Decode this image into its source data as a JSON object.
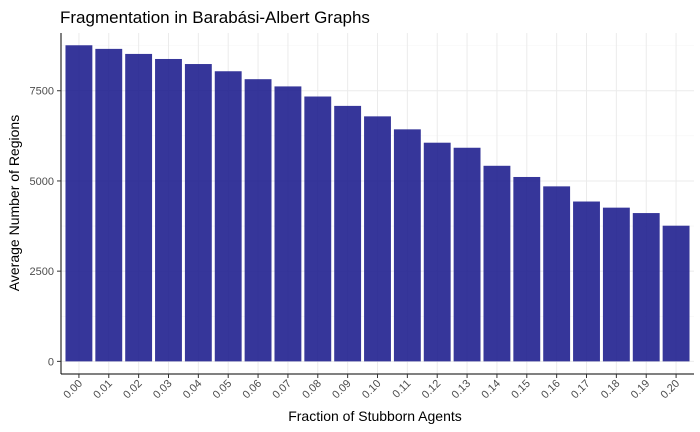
{
  "chart_data": {
    "type": "bar",
    "title": "Fragmentation in Barabási-Albert Graphs",
    "xlabel": "Fraction of Stubborn Agents",
    "ylabel": "Average Number of Regions",
    "categories": [
      "0.00",
      "0.01",
      "0.02",
      "0.03",
      "0.04",
      "0.05",
      "0.06",
      "0.07",
      "0.08",
      "0.09",
      "0.10",
      "0.11",
      "0.12",
      "0.13",
      "0.14",
      "0.15",
      "0.16",
      "0.17",
      "0.18",
      "0.19",
      "0.20"
    ],
    "values": [
      8760,
      8660,
      8520,
      8380,
      8240,
      8040,
      7820,
      7620,
      7340,
      7080,
      6790,
      6430,
      6060,
      5920,
      5420,
      5110,
      4850,
      4430,
      4260,
      4110,
      3760
    ],
    "ylim": [
      -350,
      9100
    ],
    "yticks": [
      0,
      2500,
      5000,
      7500
    ],
    "ytick_labels": [
      "0",
      "2500",
      "5000",
      "7500"
    ],
    "bar_color": "#1a1a8c",
    "grid": true,
    "legend": "none"
  }
}
